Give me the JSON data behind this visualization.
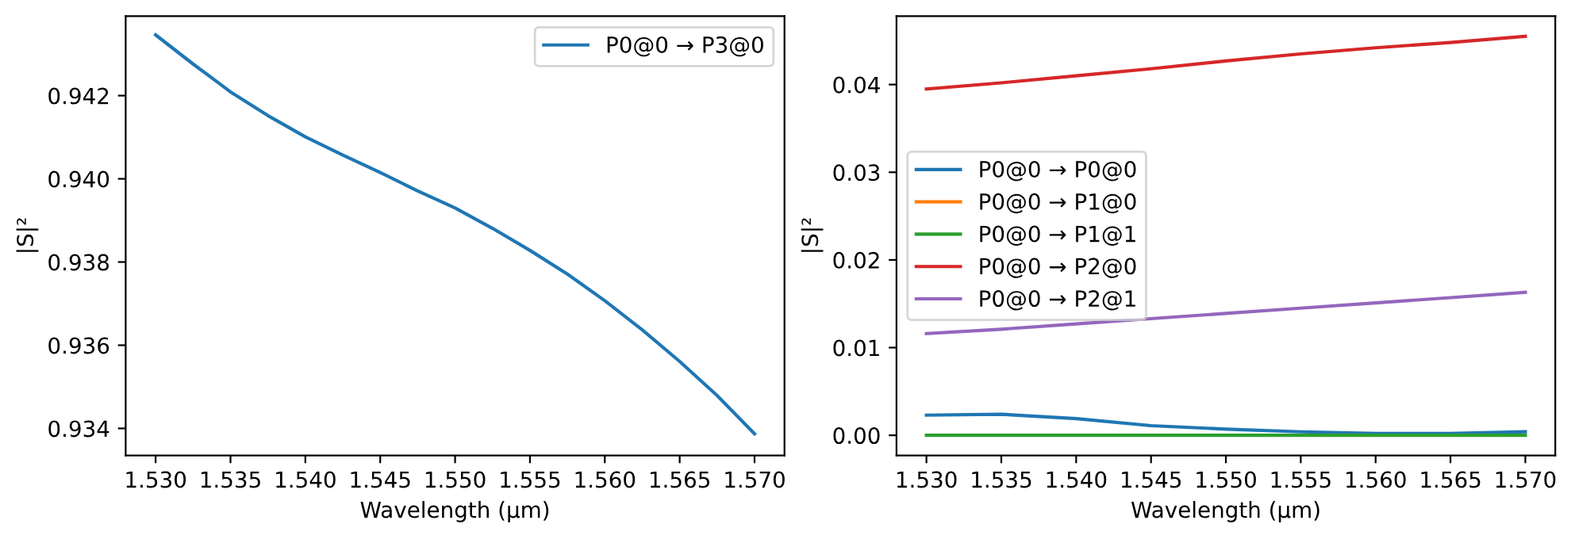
{
  "chart_data": [
    {
      "type": "line",
      "xlabel": "Wavelength (µm)",
      "ylabel": "|S|²",
      "legend": "top right",
      "xlim": [
        1.528,
        1.572
      ],
      "xticks": [
        {
          "value": 1.53,
          "label": "1.530"
        },
        {
          "value": 1.535,
          "label": "1.535"
        },
        {
          "value": 1.54,
          "label": "1.540"
        },
        {
          "value": 1.545,
          "label": "1.545"
        },
        {
          "value": 1.55,
          "label": "1.550"
        },
        {
          "value": 1.555,
          "label": "1.555"
        },
        {
          "value": 1.56,
          "label": "1.560"
        },
        {
          "value": 1.565,
          "label": "1.565"
        },
        {
          "value": 1.57,
          "label": "1.570"
        }
      ],
      "ylim": [
        0.93335,
        0.94391
      ],
      "yticks": [
        0.934,
        0.936,
        0.938,
        {
          "value": 0.94,
          "label": "0.940"
        },
        0.942
      ],
      "x": [
        1.53,
        1.5325,
        1.535,
        1.5375,
        1.54,
        1.5425,
        1.545,
        1.5475,
        1.55,
        1.5525,
        1.555,
        1.5575,
        1.56,
        1.5625,
        1.565,
        1.5675,
        1.57
      ],
      "series": [
        {
          "name": "P0@0 → P3@0",
          "color": "#1f77b4",
          "values": [
            0.94346,
            0.94276,
            0.94209,
            0.94152,
            0.94101,
            0.94057,
            0.94015,
            0.93971,
            0.9393,
            0.93881,
            0.93828,
            0.93771,
            0.93707,
            0.93637,
            0.93561,
            0.93479,
            0.93387
          ]
        }
      ]
    },
    {
      "type": "line",
      "xlabel": "Wavelength (µm)",
      "ylabel": "|S|²",
      "legend": "left",
      "xlim": [
        1.528,
        1.572
      ],
      "xticks": [
        {
          "value": 1.53,
          "label": "1.530"
        },
        {
          "value": 1.535,
          "label": "1.535"
        },
        {
          "value": 1.54,
          "label": "1.540"
        },
        {
          "value": 1.545,
          "label": "1.545"
        },
        {
          "value": 1.55,
          "label": "1.550"
        },
        {
          "value": 1.555,
          "label": "1.555"
        },
        {
          "value": 1.56,
          "label": "1.560"
        },
        {
          "value": 1.565,
          "label": "1.565"
        },
        {
          "value": 1.57,
          "label": "1.570"
        }
      ],
      "ylim": [
        -0.0023,
        0.0478
      ],
      "yticks": [
        {
          "value": 0,
          "label": "0.00"
        },
        {
          "value": 0.01,
          "label": "0.01"
        },
        {
          "value": 0.02,
          "label": "0.02"
        },
        {
          "value": 0.03,
          "label": "0.03"
        },
        {
          "value": 0.04,
          "label": "0.04"
        }
      ],
      "x": [
        1.53,
        1.535,
        1.54,
        1.545,
        1.55,
        1.555,
        1.56,
        1.565,
        1.57
      ],
      "series": [
        {
          "name": "P0@0 → P0@0",
          "color": "#1f77b4",
          "values": [
            0.0023,
            0.0024,
            0.0019,
            0.0011,
            0.0007,
            0.0004,
            0.0002,
            0.0002,
            0.0004
          ]
        },
        {
          "name": "P0@0 → P1@0",
          "color": "#ff7f0e",
          "values": [
            null,
            null,
            null,
            null,
            null,
            null,
            null,
            null,
            null
          ]
        },
        {
          "name": "P0@0 → P1@1",
          "color": "#2ca02c",
          "values": [
            0,
            0,
            0,
            0,
            0,
            0,
            0,
            0,
            0
          ]
        },
        {
          "name": "P0@0 → P2@0",
          "color": "#d62728",
          "values": [
            0.0395,
            0.0402,
            0.041,
            0.0418,
            0.0427,
            0.0435,
            0.0442,
            0.0448,
            0.0455
          ]
        },
        {
          "name": "P0@0 → P2@1",
          "color": "#9467bd",
          "values": [
            0.0116,
            0.0121,
            0.0127,
            0.0133,
            0.0139,
            0.0145,
            0.0151,
            0.0157,
            0.0163
          ]
        }
      ]
    }
  ]
}
